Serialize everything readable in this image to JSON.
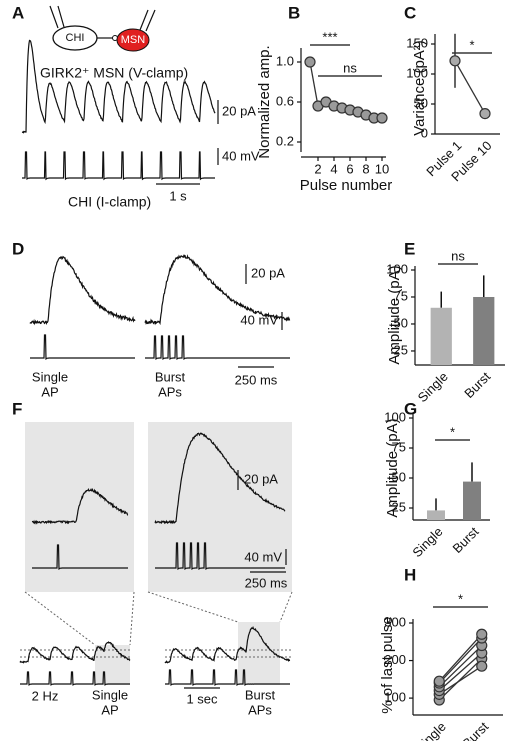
{
  "figure": {
    "panel_labels": [
      "A",
      "B",
      "C",
      "D",
      "E",
      "F",
      "G",
      "H"
    ],
    "panel_a": {
      "cell_1": "CHI",
      "cell_2": "MSN",
      "trace_top": "GIRK2⁺ MSN (V-clamp)",
      "trace_bottom": "CHI (I-clamp)",
      "scale_current": "20 pA",
      "scale_voltage": "40 mV",
      "scale_time": "1 s"
    },
    "panel_d": {
      "scale_current": "20 pA",
      "scale_voltage": "40 mV",
      "scale_time": "250 ms",
      "single": [
        "Single",
        "AP"
      ],
      "burst": [
        "Burst",
        "APs"
      ]
    },
    "panel_f": {
      "scale_current": "20 pA",
      "scale_voltage": "40 mV",
      "scale_time": "250 ms",
      "rate": "2 Hz",
      "time": "1 sec",
      "single": [
        "Single",
        "AP"
      ],
      "burst": [
        "Burst",
        "APs"
      ]
    }
  },
  "chart_data": [
    {
      "type": "line",
      "xlabel": "Pulse number",
      "ylabel": "Normalized amp.",
      "x": [
        1,
        2,
        3,
        4,
        5,
        6,
        7,
        8,
        9,
        10
      ],
      "values": [
        1.0,
        0.56,
        0.6,
        0.56,
        0.54,
        0.52,
        0.5,
        0.47,
        0.44,
        0.44
      ],
      "color": "#9a9a9a",
      "xlim": [
        0.5,
        10.5
      ],
      "ylim": [
        0.1,
        1.1
      ],
      "xticks": [
        2,
        4,
        6,
        8,
        10
      ],
      "yticks": [
        0.2,
        0.6,
        {
          "value": 1,
          "label": "1.0"
        }
      ],
      "annotations": [
        "***",
        "ns"
      ]
    },
    {
      "type": "line",
      "ylabel": "Variance (pA²)",
      "categories": [
        "Pulse 1",
        "Pulse 10"
      ],
      "values": [
        122,
        34
      ],
      "errors": [
        45,
        5
      ],
      "color": "#aaaaaa",
      "ylim": [
        0,
        160
      ],
      "yticks": [
        0,
        50,
        100,
        150
      ],
      "annotations": [
        "*"
      ]
    },
    {
      "type": "bar",
      "ylabel": "Amplitude (pA)",
      "categories": [
        "Single",
        "Burst"
      ],
      "values": [
        65,
        75
      ],
      "errors": [
        15,
        20
      ],
      "colors": [
        "#b3b3b3",
        "#808080"
      ],
      "ylim": [
        12,
        100
      ],
      "yticks": [
        25,
        50,
        75,
        100
      ],
      "annotations": [
        "ns"
      ]
    },
    {
      "type": "bar",
      "ylabel": "Amplitude (pA)",
      "categories": [
        "Single",
        "Burst"
      ],
      "values": [
        23,
        47
      ],
      "errors": [
        10,
        16
      ],
      "colors": [
        "#b3b3b3",
        "#808080"
      ],
      "ylim": [
        15,
        100
      ],
      "yticks": [
        25,
        50,
        75,
        100
      ],
      "annotations": [
        "*"
      ]
    },
    {
      "type": "line",
      "ylabel": "% of last pulse",
      "categories": [
        "Single",
        "Burst"
      ],
      "color": "#9a9a9a",
      "series": [
        {
          "values": [
            95,
            205
          ]
        },
        {
          "values": [
            110,
            185
          ]
        },
        {
          "values": [
            120,
            220
          ]
        },
        {
          "values": [
            130,
            240
          ]
        },
        {
          "values": [
            140,
            260
          ]
        },
        {
          "values": [
            145,
            270
          ]
        }
      ],
      "ylim": [
        55,
        300
      ],
      "yticks": [
        100,
        200,
        300
      ],
      "annotations": [
        "*"
      ]
    }
  ]
}
